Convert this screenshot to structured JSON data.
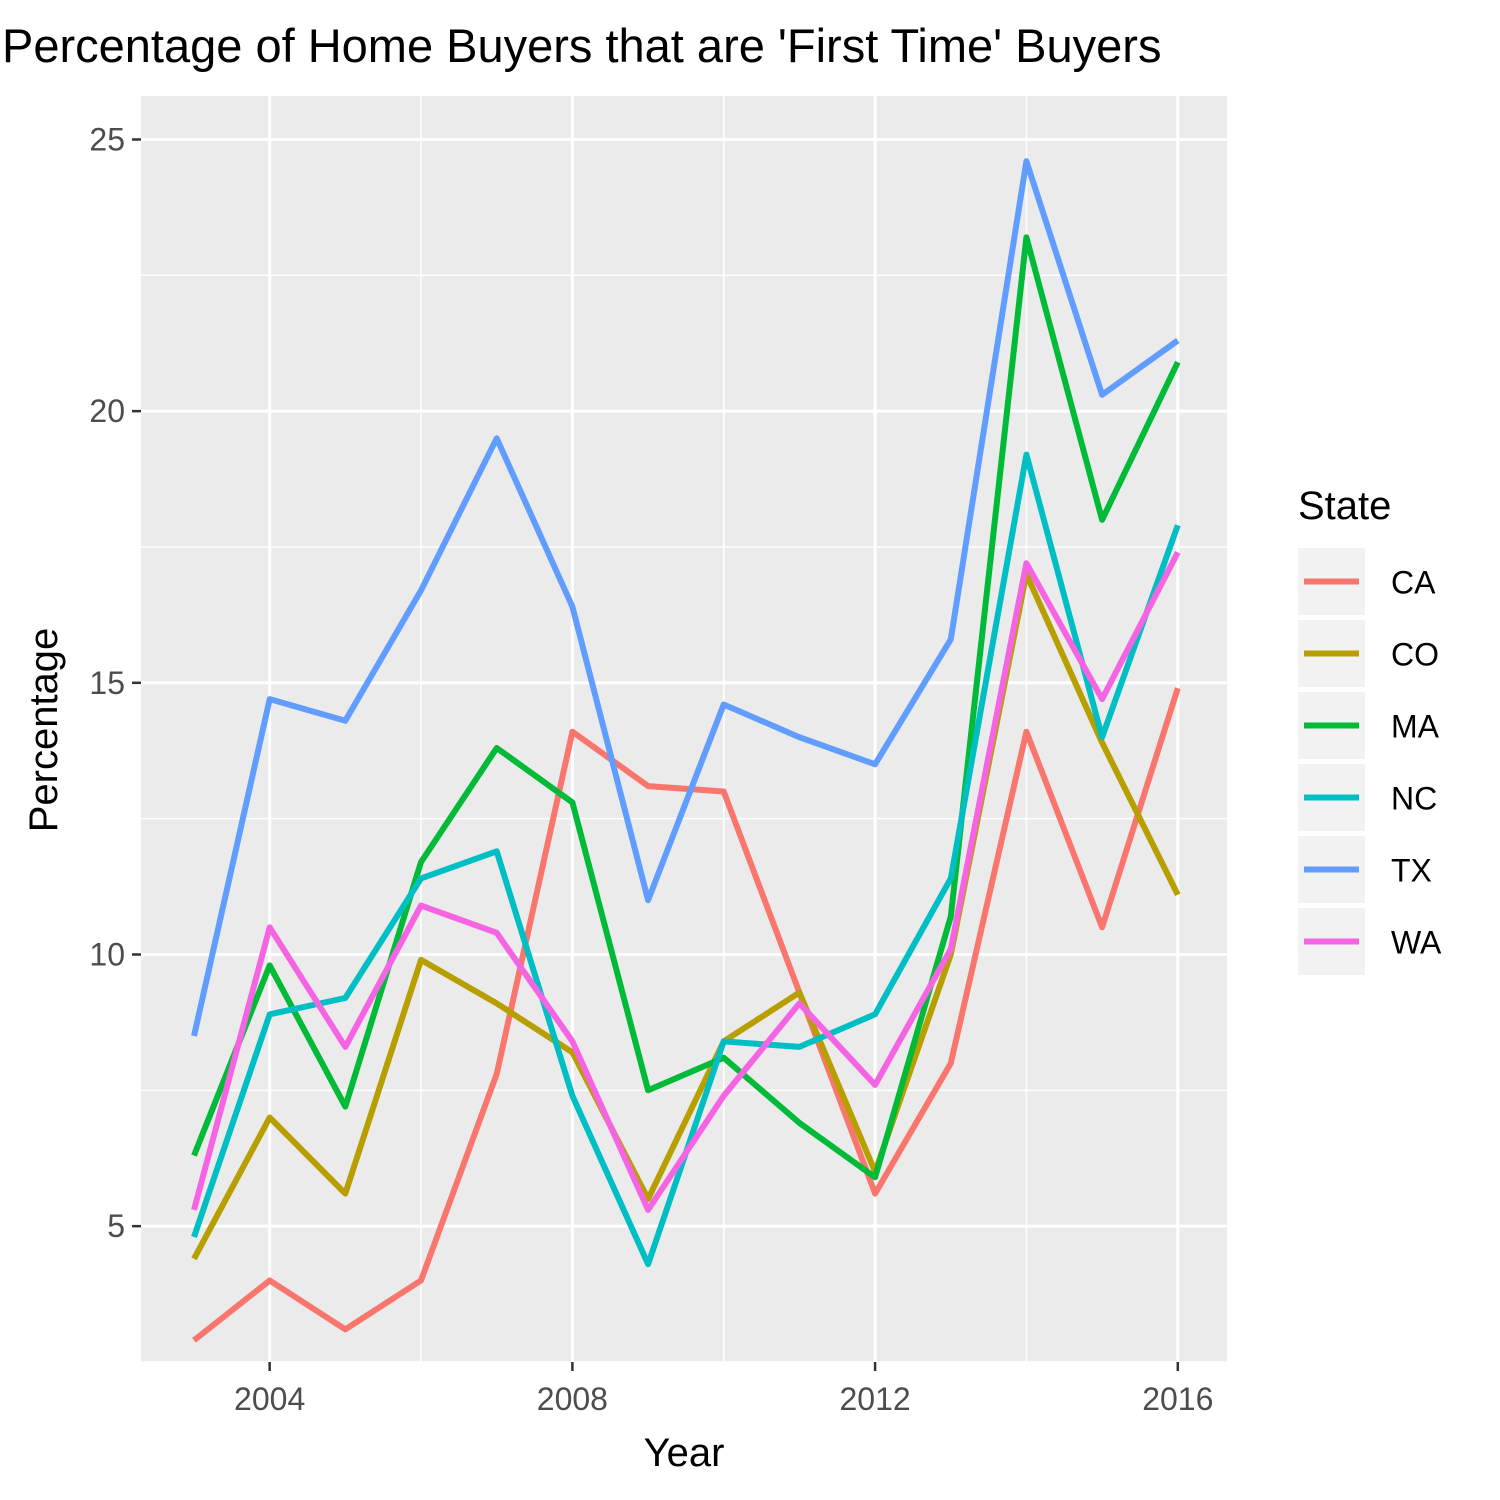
{
  "chart_data": {
    "type": "line",
    "title": "Percentage of Home Buyers that are 'First Time' Buyers",
    "xlabel": "Year",
    "ylabel": "Percentage",
    "x": [
      2003,
      2004,
      2005,
      2006,
      2007,
      2008,
      2009,
      2010,
      2011,
      2012,
      2013,
      2014,
      2015,
      2016
    ],
    "xlim": [
      2002.3,
      2016.65
    ],
    "ylim": [
      2.5,
      25.8
    ],
    "x_ticks": [
      2004,
      2008,
      2012,
      2016
    ],
    "y_ticks": [
      5,
      10,
      15,
      20,
      25
    ],
    "x_tick_labels": [
      "2004",
      "2008",
      "2012",
      "2016"
    ],
    "y_tick_labels": [
      "5",
      "10",
      "15",
      "20",
      "25"
    ],
    "grid": true,
    "panel_background": "#ebebeb",
    "legend": {
      "title": "State",
      "position": "right"
    },
    "series": [
      {
        "name": "CA",
        "color": "#f8766d",
        "values": [
          2.9,
          4.0,
          3.1,
          4.0,
          7.8,
          14.1,
          13.1,
          13.0,
          9.3,
          5.6,
          8.0,
          14.1,
          10.5,
          14.9
        ]
      },
      {
        "name": "CO",
        "color": "#b79f00",
        "values": [
          4.4,
          7.0,
          5.6,
          9.9,
          9.1,
          8.2,
          5.5,
          8.4,
          9.3,
          6.0,
          10.0,
          17.0,
          13.9,
          11.1
        ]
      },
      {
        "name": "MA",
        "color": "#00ba38",
        "values": [
          6.3,
          9.8,
          7.2,
          11.7,
          13.8,
          12.8,
          7.5,
          8.1,
          6.9,
          5.9,
          10.7,
          23.2,
          18.0,
          20.9
        ]
      },
      {
        "name": "NC",
        "color": "#00bfc4",
        "values": [
          4.8,
          8.9,
          9.2,
          11.4,
          11.9,
          7.4,
          4.3,
          8.4,
          8.3,
          8.9,
          11.4,
          19.2,
          14.0,
          17.9
        ]
      },
      {
        "name": "TX",
        "color": "#619cff",
        "values": [
          8.5,
          14.7,
          14.3,
          16.7,
          19.5,
          16.4,
          11.0,
          14.6,
          14.0,
          13.5,
          15.8,
          24.6,
          20.3,
          21.3
        ]
      },
      {
        "name": "WA",
        "color": "#f564e3",
        "values": [
          5.3,
          10.5,
          8.3,
          10.9,
          10.4,
          8.4,
          5.3,
          7.4,
          9.1,
          7.6,
          10.1,
          17.2,
          14.7,
          17.4
        ]
      }
    ]
  }
}
